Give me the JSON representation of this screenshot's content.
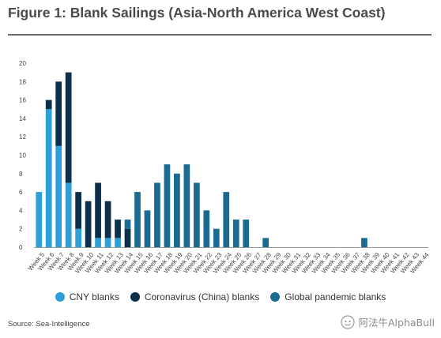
{
  "figure_title": "Figure 1: Blank Sailings (Asia-North America West Coast)",
  "source": "Source: Sea-Intelligence",
  "watermark": "阿法牛AlphaBull",
  "colors": {
    "cny": "#2d9fd9",
    "coronavirus": "#0c2f4c",
    "global": "#1b6a91",
    "axis": "#9a9a9a",
    "title_rule": "#6b6b6b"
  },
  "chart_data": {
    "type": "bar",
    "stacked": true,
    "title": "",
    "xlabel": "",
    "ylabel": "",
    "ylim": [
      0,
      20
    ],
    "yticks": [
      0,
      2,
      4,
      6,
      8,
      10,
      12,
      14,
      16,
      18,
      20
    ],
    "grid": false,
    "legend_position": "bottom",
    "categories": [
      "Week 5",
      "Week 6",
      "Week 7",
      "Week 8",
      "Week 9",
      "Week 10",
      "Week 11",
      "Week 12",
      "Week 13",
      "Week 14",
      "Week 15",
      "Week 16",
      "Week 17",
      "Week 18",
      "Week 19",
      "Week 20",
      "Week 21",
      "Week 22",
      "Week 23",
      "Week 24",
      "Week 25",
      "Week 26",
      "Week 27",
      "Week 28",
      "Week 29",
      "Week 30",
      "Week 31",
      "Week 32",
      "Week 33",
      "Week 34",
      "Week 35",
      "Week 36",
      "Week 37",
      "Week 38",
      "Week 39",
      "Week 40",
      "Week 41",
      "Week 42",
      "Week 43",
      "Week 44"
    ],
    "series": [
      {
        "name": "CNY blanks",
        "color": "#2d9fd9",
        "values": [
          6,
          15,
          11,
          7,
          2,
          0,
          1,
          1,
          1,
          0,
          0,
          0,
          0,
          0,
          0,
          0,
          0,
          0,
          0,
          0,
          0,
          0,
          0,
          0,
          0,
          0,
          0,
          0,
          0,
          0,
          0,
          0,
          0,
          0,
          0,
          0,
          0,
          0,
          0,
          0
        ]
      },
      {
        "name": "Coronavirus (China) blanks",
        "color": "#0c2f4c",
        "values": [
          0,
          1,
          7,
          12,
          4,
          5,
          6,
          4,
          2,
          2,
          0,
          0,
          0,
          0,
          0,
          0,
          0,
          0,
          0,
          0,
          0,
          0,
          0,
          0,
          0,
          0,
          0,
          0,
          0,
          0,
          0,
          0,
          0,
          0,
          0,
          0,
          0,
          0,
          0,
          0
        ]
      },
      {
        "name": "Global pandemic blanks",
        "color": "#1b6a91",
        "values": [
          0,
          0,
          0,
          0,
          0,
          0,
          0,
          0,
          0,
          1,
          6,
          4,
          7,
          9,
          8,
          9,
          7,
          4,
          2,
          6,
          3,
          3,
          0,
          1,
          0,
          0,
          0,
          0,
          0,
          0,
          0,
          0,
          0,
          1,
          0,
          0,
          0,
          0,
          0,
          0
        ]
      }
    ]
  }
}
